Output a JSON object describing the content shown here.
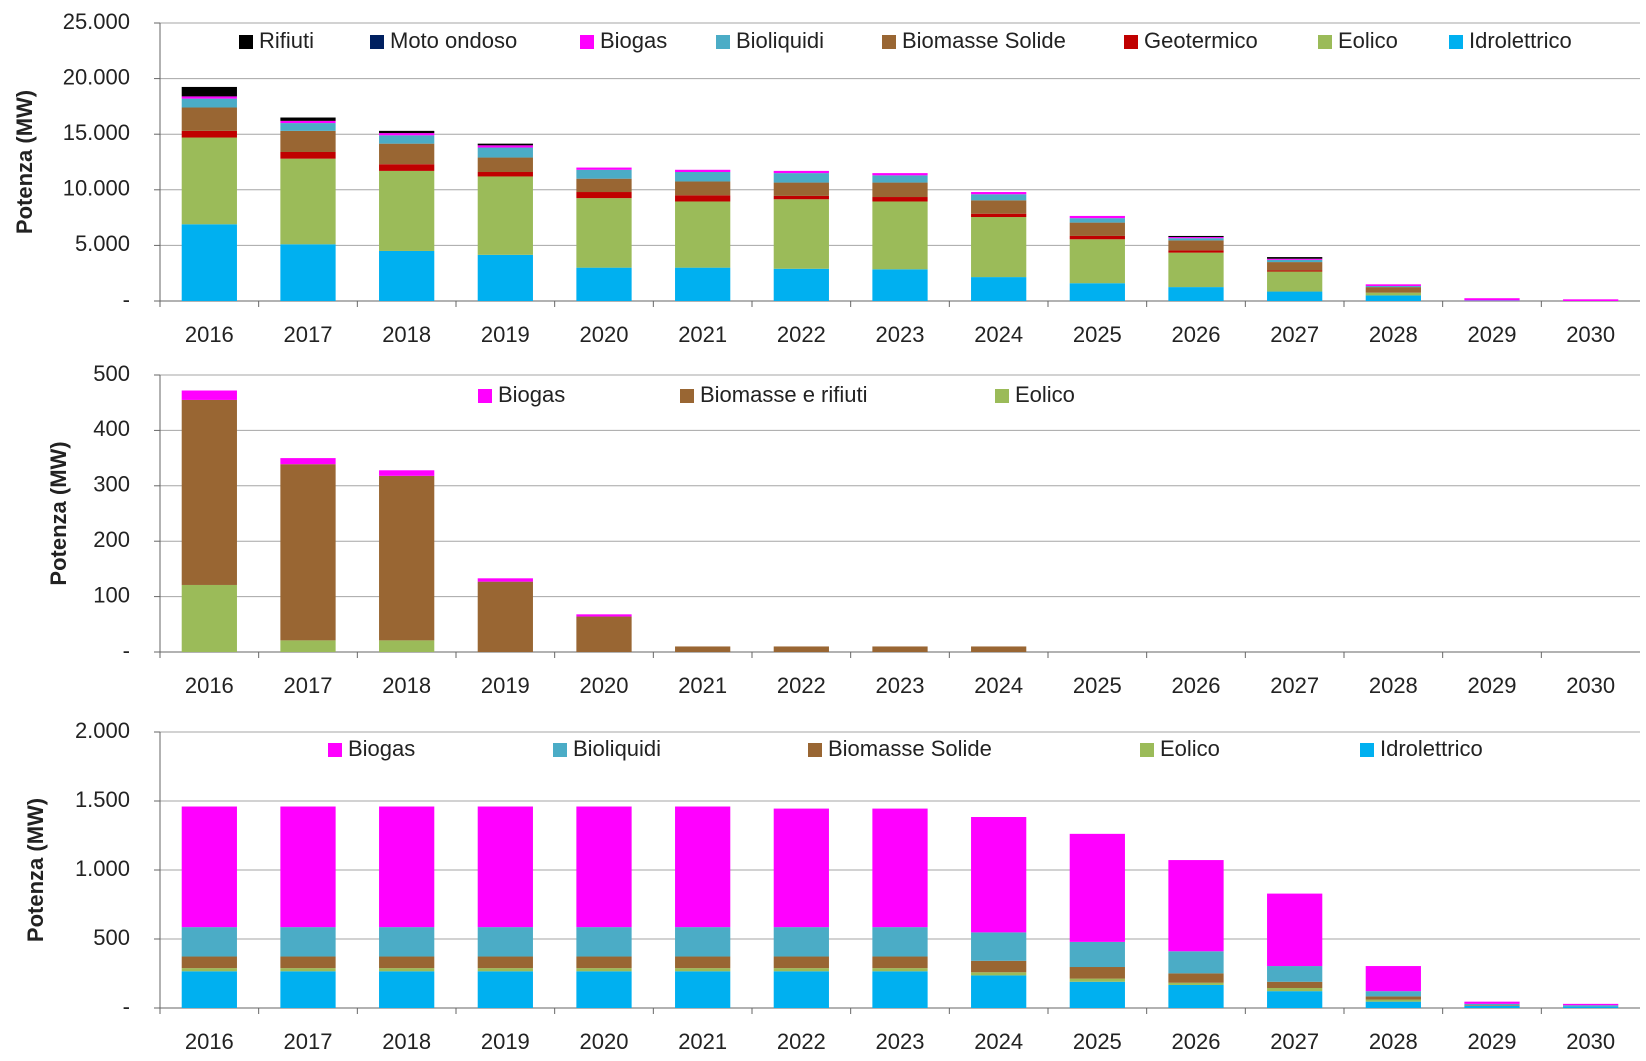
{
  "chart_data": [
    {
      "type": "bar",
      "stacked": true,
      "ylabel": "Potenza (MW)",
      "grid": true,
      "categories": [
        "2016",
        "2017",
        "2018",
        "2019",
        "2020",
        "2021",
        "2022",
        "2023",
        "2024",
        "2025",
        "2026",
        "2027",
        "2028",
        "2029",
        "2030"
      ],
      "ylim": [
        0,
        25000
      ],
      "yticks": [
        {
          "value": 0,
          "label": "-"
        },
        {
          "value": 5000,
          "label": "5.000"
        },
        {
          "value": 10000,
          "label": "10.000"
        },
        {
          "value": 15000,
          "label": "15.000"
        },
        {
          "value": 20000,
          "label": "20.000"
        },
        {
          "value": 25000,
          "label": "25.000"
        }
      ],
      "series": [
        {
          "name": "Idrolettrico",
          "color": "#00b0f0",
          "values": [
            6900,
            5100,
            4500,
            4150,
            3000,
            3000,
            2900,
            2850,
            2150,
            1600,
            1250,
            850,
            500,
            0,
            0
          ]
        },
        {
          "name": "Eolico",
          "color": "#9bbb59",
          "values": [
            7800,
            7700,
            7200,
            7050,
            6250,
            5950,
            6250,
            6100,
            5400,
            3950,
            3100,
            1800,
            250,
            0,
            0
          ]
        },
        {
          "name": "Geotermico",
          "color": "#c00000",
          "values": [
            600,
            600,
            600,
            400,
            550,
            550,
            300,
            400,
            300,
            300,
            200,
            100,
            0,
            0,
            0
          ]
        },
        {
          "name": "Biomasse Solide",
          "color": "#996633",
          "values": [
            2100,
            1900,
            1850,
            1300,
            1200,
            1250,
            1200,
            1300,
            1200,
            1200,
            900,
            750,
            500,
            0,
            0
          ]
        },
        {
          "name": "Bioliquidi",
          "color": "#4bacc6",
          "values": [
            800,
            700,
            750,
            900,
            800,
            850,
            850,
            650,
            550,
            400,
            200,
            200,
            100,
            50,
            0
          ]
        },
        {
          "name": "Biogas",
          "color": "#ff00ff",
          "values": [
            200,
            200,
            200,
            200,
            200,
            200,
            200,
            200,
            200,
            200,
            100,
            100,
            150,
            200,
            150
          ]
        },
        {
          "name": "Moto ondoso",
          "color": "#002060",
          "values": [
            0,
            0,
            0,
            0,
            0,
            0,
            0,
            0,
            0,
            0,
            0,
            0,
            0,
            0,
            0
          ]
        },
        {
          "name": "Rifiuti",
          "color": "#000000",
          "values": [
            850,
            300,
            200,
            150,
            0,
            0,
            0,
            0,
            0,
            0,
            100,
            150,
            0,
            0,
            0
          ]
        }
      ]
    },
    {
      "type": "bar",
      "stacked": true,
      "ylabel": "Potenza (MW)",
      "grid": true,
      "categories": [
        "2016",
        "2017",
        "2018",
        "2019",
        "2020",
        "2021",
        "2022",
        "2023",
        "2024",
        "2025",
        "2026",
        "2027",
        "2028",
        "2029",
        "2030"
      ],
      "ylim": [
        0,
        500
      ],
      "yticks": [
        {
          "value": 0,
          "label": "-"
        },
        100,
        200,
        300,
        400,
        500
      ],
      "series": [
        {
          "name": "Eolico",
          "color": "#9bbb59",
          "values": [
            121,
            21,
            21,
            0,
            0,
            0,
            0,
            0,
            0,
            0,
            0,
            0,
            0,
            0,
            0
          ]
        },
        {
          "name": "Biomasse e rifiuti",
          "color": "#996633",
          "values": [
            334,
            318,
            297,
            127,
            64,
            10,
            10,
            10,
            10,
            0,
            0,
            0,
            0,
            0,
            0
          ]
        },
        {
          "name": "Biogas",
          "color": "#ff00ff",
          "values": [
            17,
            11,
            10,
            6,
            4,
            0,
            0,
            0,
            0,
            0,
            0,
            0,
            0,
            0,
            0
          ]
        }
      ]
    },
    {
      "type": "bar",
      "stacked": true,
      "ylabel": "Potenza (MW)",
      "grid": true,
      "categories": [
        "2016",
        "2017",
        "2018",
        "2019",
        "2020",
        "2021",
        "2022",
        "2023",
        "2024",
        "2025",
        "2026",
        "2027",
        "2028",
        "2029",
        "2030"
      ],
      "ylim": [
        0,
        2000
      ],
      "yticks": [
        {
          "value": 0,
          "label": "-"
        },
        500,
        {
          "value": 1000,
          "label": "1.000"
        },
        {
          "value": 1500,
          "label": "1.500"
        },
        {
          "value": 2000,
          "label": "2.000"
        }
      ],
      "series": [
        {
          "name": "Idrolettrico",
          "color": "#00b0f0",
          "values": [
            266,
            266,
            266,
            266,
            266,
            266,
            266,
            266,
            236,
            190,
            167,
            122,
            46,
            15,
            10
          ]
        },
        {
          "name": "Eolico",
          "color": "#9bbb59",
          "values": [
            23,
            23,
            23,
            23,
            23,
            23,
            23,
            23,
            23,
            23,
            16,
            23,
            15,
            0,
            0
          ]
        },
        {
          "name": "Biomasse Solide",
          "color": "#996633",
          "values": [
            84,
            84,
            84,
            84,
            84,
            84,
            84,
            84,
            83,
            84,
            68,
            45,
            23,
            5,
            0
          ]
        },
        {
          "name": "Bioliquidi",
          "color": "#4bacc6",
          "values": [
            213,
            213,
            213,
            213,
            213,
            213,
            213,
            213,
            206,
            182,
            160,
            114,
            38,
            10,
            10
          ]
        },
        {
          "name": "Biogas",
          "color": "#ff00ff",
          "values": [
            874,
            874,
            874,
            874,
            874,
            874,
            859,
            859,
            836,
            783,
            661,
            525,
            182,
            16,
            10
          ]
        }
      ]
    }
  ]
}
